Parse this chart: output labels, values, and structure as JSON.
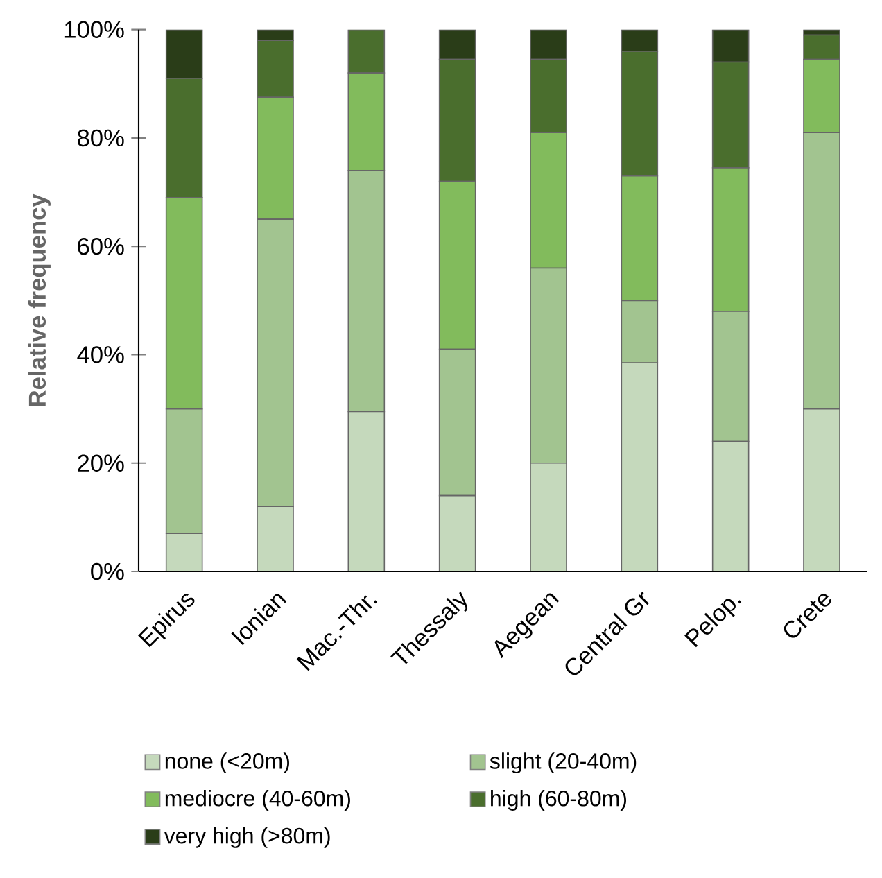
{
  "chart_data": {
    "type": "bar",
    "stacked": true,
    "ylabel": "Relative frequency",
    "categories": [
      "Epirus",
      "Ionian",
      "Mac.-Thr.",
      "Thessaly",
      "Aegean",
      "Central Gr",
      "Pelop.",
      "Crete"
    ],
    "series": [
      {
        "name": "none (<20m)",
        "color": "#c5d9bc",
        "values": [
          7,
          12,
          29.5,
          14,
          20,
          38.5,
          24,
          30
        ]
      },
      {
        "name": "slight (20-40m)",
        "color": "#a2c490",
        "values": [
          23,
          53,
          44.5,
          27,
          36,
          11.5,
          24,
          51
        ]
      },
      {
        "name": "mediocre (40-60m)",
        "color": "#82bb5c",
        "values": [
          39,
          22.5,
          18,
          31,
          25,
          23,
          26.5,
          13.5
        ]
      },
      {
        "name": "high (60-80m)",
        "color": "#4a6e2d",
        "values": [
          22,
          10.5,
          8,
          22.5,
          13.5,
          23,
          19.5,
          4.5
        ]
      },
      {
        "name": "very high (>80m)",
        "color": "#2a3d18",
        "values": [
          9,
          2,
          0,
          5.5,
          5.5,
          4,
          6,
          1
        ]
      }
    ],
    "ylim": [
      0,
      100
    ],
    "yticks": [
      {
        "value": 0,
        "label": "0%"
      },
      {
        "value": 20,
        "label": "20%"
      },
      {
        "value": 40,
        "label": "40%"
      },
      {
        "value": 60,
        "label": "60%"
      },
      {
        "value": 80,
        "label": "80%"
      },
      {
        "value": 100,
        "label": "100%"
      }
    ],
    "legend": "bottom",
    "grid": false
  }
}
